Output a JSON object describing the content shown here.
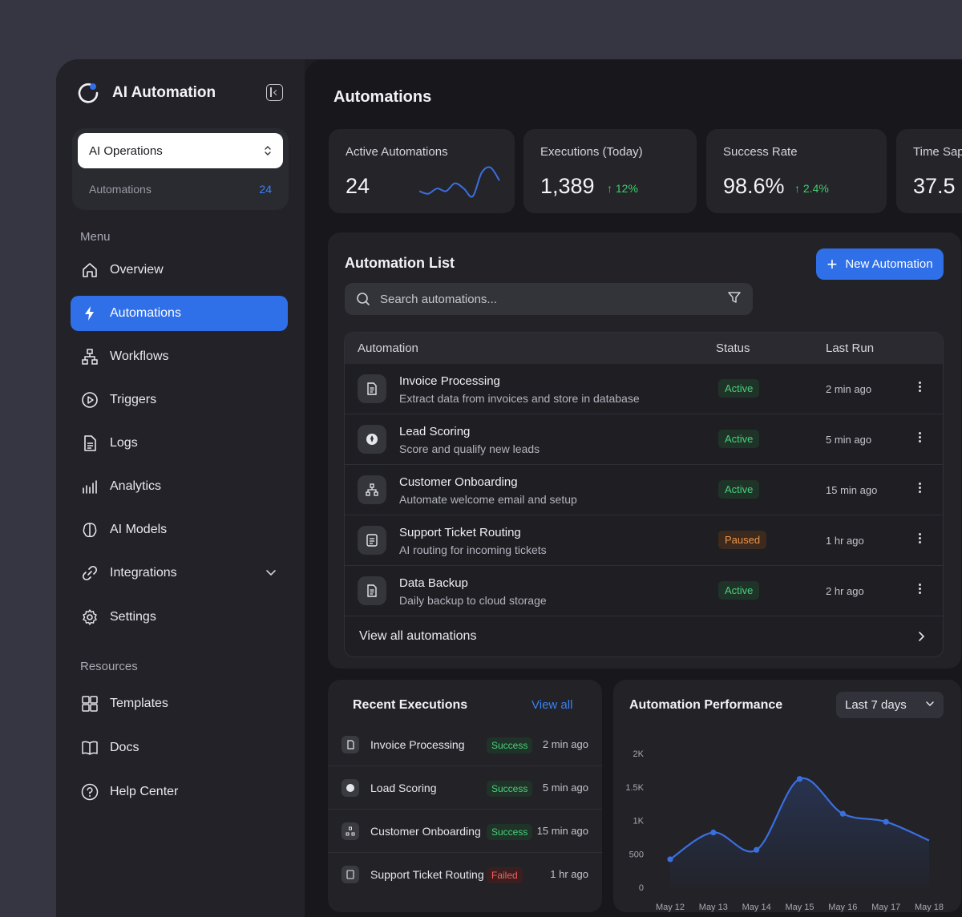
{
  "app": {
    "title": "AI Automation"
  },
  "workspace": {
    "selected": "AI Operations",
    "sub_label": "Automations",
    "sub_count": "24"
  },
  "sidebar": {
    "menu_label": "Menu",
    "menu_items": [
      {
        "label": "Overview",
        "icon": "home-icon"
      },
      {
        "label": "Automations",
        "icon": "lightning-icon",
        "active": true
      },
      {
        "label": "Workflows",
        "icon": "workflow-icon"
      },
      {
        "label": "Triggers",
        "icon": "play-circle-icon"
      },
      {
        "label": "Logs",
        "icon": "document-icon"
      },
      {
        "label": "Analytics",
        "icon": "analytics-icon"
      },
      {
        "label": "AI Models",
        "icon": "brain-icon"
      },
      {
        "label": "Integrations",
        "icon": "link-icon",
        "expandable": true
      },
      {
        "label": "Settings",
        "icon": "gear-icon"
      }
    ],
    "resources_label": "Resources",
    "resource_items": [
      {
        "label": "Templates",
        "icon": "grid-icon"
      },
      {
        "label": "Docs",
        "icon": "book-icon"
      },
      {
        "label": "Help Center",
        "icon": "help-icon"
      }
    ]
  },
  "main": {
    "title": "Automations"
  },
  "stats": [
    {
      "label": "Active Automations",
      "value": "24",
      "sparkline": [
        12,
        11,
        13,
        12,
        15,
        13,
        10,
        19,
        21,
        16
      ]
    },
    {
      "label": "Executions (Today)",
      "value": "1,389",
      "delta": "12%"
    },
    {
      "label": "Success Rate",
      "value": "98.6%",
      "delta": "2.4%"
    },
    {
      "label": "Time Sap",
      "value": "37.5"
    }
  ],
  "automation_list": {
    "title": "Automation List",
    "new_button": "New Automation",
    "search_placeholder": "Search automations...",
    "columns": [
      "Automation",
      "Status",
      "Last Run"
    ],
    "rows": [
      {
        "name": "Invoice Processing",
        "description": "Extract data from invoices and store in database",
        "status": "Active",
        "last_run": "2 min ago",
        "icon": "document-icon"
      },
      {
        "name": "Lead Scoring",
        "description": "Score and qualify new leads",
        "status": "Active",
        "last_run": "5 min ago",
        "icon": "lead-icon"
      },
      {
        "name": "Customer Onboarding",
        "description": "Automate welcome email and setup",
        "status": "Active",
        "last_run": "15 min ago",
        "icon": "workflow-icon"
      },
      {
        "name": "Support Ticket Routing",
        "description": "AI routing for incoming tickets",
        "status": "Paused",
        "last_run": "1 hr ago",
        "icon": "ticket-icon"
      },
      {
        "name": "Data Backup",
        "description": "Daily backup to cloud storage",
        "status": "Active",
        "last_run": "2 hr ago",
        "icon": "document-icon"
      }
    ],
    "view_all": "View all automations"
  },
  "recent_executions": {
    "title": "Recent Executions",
    "view_all": "View all",
    "rows": [
      {
        "name": "Invoice Processing",
        "status": "Success",
        "time": "2 min ago"
      },
      {
        "name": "Load Scoring",
        "status": "Success",
        "time": "5 min ago"
      },
      {
        "name": "Customer Onboarding",
        "status": "Success",
        "time": "15 min ago"
      },
      {
        "name": "Support Ticket Routing",
        "status": "Failed",
        "time": "1 hr ago"
      }
    ]
  },
  "performance": {
    "title": "Automation Performance",
    "range": "Last 7 days"
  },
  "chart_data": {
    "type": "line",
    "title": "Automation Performance",
    "categories": [
      "May 12",
      "May 13",
      "May 14",
      "May 15",
      "May 16",
      "May 17",
      "May 18"
    ],
    "values": [
      420,
      820,
      560,
      1620,
      1100,
      980,
      700
    ],
    "yticks": [
      "0",
      "500",
      "1K",
      "1.5K",
      "2K"
    ],
    "ylim": [
      0,
      2000
    ],
    "grid": false,
    "color": "#3b6fe0"
  },
  "colors": {
    "accent": "#2f6fe8",
    "success": "#4ad07c",
    "paused": "#f0954a",
    "failed": "#f2605e"
  }
}
